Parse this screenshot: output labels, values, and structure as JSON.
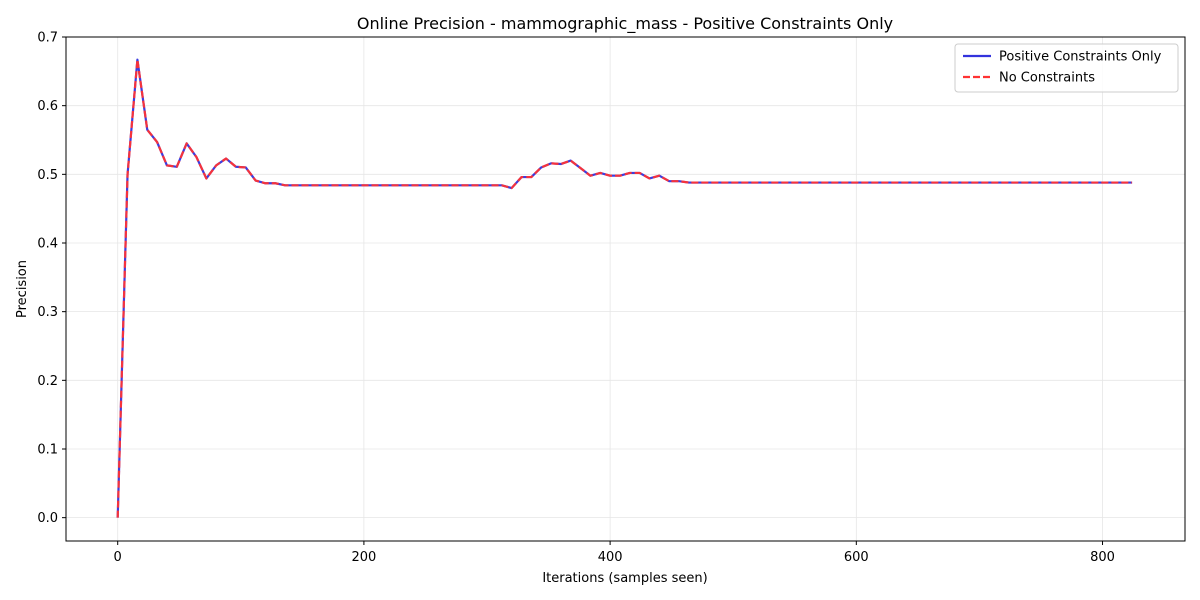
{
  "chart_data": {
    "type": "line",
    "title": "Online Precision - mammographic_mass - Positive Constraints Only",
    "xlabel": "Iterations (samples seen)",
    "ylabel": "Precision",
    "xlim": [
      -42,
      867
    ],
    "ylim": [
      -0.034,
      0.7
    ],
    "xticks": [
      0,
      200,
      400,
      600,
      800
    ],
    "yticks": [
      0.0,
      0.1,
      0.2,
      0.3,
      0.4,
      0.5,
      0.6,
      0.7
    ],
    "xtick_labels": [
      "0",
      "200",
      "400",
      "600",
      "800"
    ],
    "ytick_labels": [
      "0.0",
      "0.1",
      "0.2",
      "0.3",
      "0.4",
      "0.5",
      "0.6",
      "0.7"
    ],
    "grid": true,
    "legend_position": "top-right",
    "series": [
      {
        "name": "Positive Constraints Only",
        "color": "#3333dd",
        "style": "solid",
        "x": [
          0,
          8,
          16,
          24,
          32,
          40,
          48,
          56,
          64,
          72,
          80,
          88,
          96,
          104,
          112,
          120,
          128,
          136,
          144,
          160,
          200,
          250,
          300,
          312,
          320,
          328,
          336,
          344,
          352,
          360,
          368,
          376,
          384,
          392,
          400,
          408,
          416,
          424,
          432,
          440,
          448,
          456,
          464,
          480,
          560,
          640,
          720,
          824
        ],
        "y": [
          0.0,
          0.5,
          0.667,
          0.565,
          0.547,
          0.513,
          0.511,
          0.545,
          0.525,
          0.494,
          0.513,
          0.523,
          0.511,
          0.51,
          0.491,
          0.487,
          0.487,
          0.484,
          0.484,
          0.484,
          0.484,
          0.484,
          0.484,
          0.484,
          0.48,
          0.496,
          0.496,
          0.51,
          0.516,
          0.515,
          0.52,
          0.509,
          0.498,
          0.502,
          0.498,
          0.498,
          0.502,
          0.502,
          0.494,
          0.498,
          0.49,
          0.49,
          0.488,
          0.488,
          0.488,
          0.488,
          0.488,
          0.488
        ]
      },
      {
        "name": "No Constraints",
        "color": "#ff3333",
        "style": "dashed",
        "x": [
          0,
          8,
          16,
          24,
          32,
          40,
          48,
          56,
          64,
          72,
          80,
          88,
          96,
          104,
          112,
          120,
          128,
          136,
          144,
          160,
          200,
          250,
          300,
          312,
          320,
          328,
          336,
          344,
          352,
          360,
          368,
          376,
          384,
          392,
          400,
          408,
          416,
          424,
          432,
          440,
          448,
          456,
          464,
          480,
          560,
          640,
          720,
          824
        ],
        "y": [
          0.0,
          0.5,
          0.667,
          0.565,
          0.547,
          0.513,
          0.511,
          0.545,
          0.525,
          0.494,
          0.513,
          0.523,
          0.511,
          0.51,
          0.491,
          0.487,
          0.487,
          0.484,
          0.484,
          0.484,
          0.484,
          0.484,
          0.484,
          0.484,
          0.48,
          0.496,
          0.496,
          0.51,
          0.516,
          0.515,
          0.52,
          0.509,
          0.498,
          0.502,
          0.498,
          0.498,
          0.502,
          0.502,
          0.494,
          0.498,
          0.49,
          0.49,
          0.488,
          0.488,
          0.488,
          0.488,
          0.488,
          0.488
        ]
      }
    ]
  }
}
